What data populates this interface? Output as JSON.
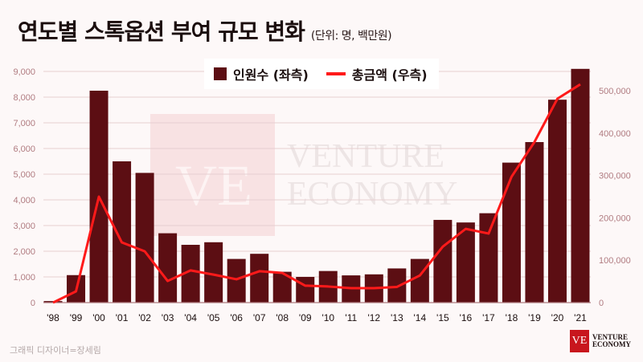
{
  "title": "연도별 스톡옵션 부여 규모 변화",
  "unit": "(단위: 명, 백만원)",
  "credit": "그래픽 디자이너=장세림",
  "watermark": {
    "line1": "VENTURE",
    "line2": "ECONOMY",
    "mark": "VE"
  },
  "logo": {
    "mark": "VE",
    "line1": "VENTURE",
    "line2": "ECONOMY"
  },
  "colors": {
    "bar": "#5c0e13",
    "line": "#ff1a1a",
    "grid": "#e6cfd1",
    "tick": "#b07b80",
    "background": "#fdf8f8"
  },
  "chart_data": {
    "type": "bar+line",
    "title": "연도별 스톡옵션 부여 규모 변화",
    "categories": [
      "'98",
      "'99",
      "'00",
      "'01",
      "'02",
      "'03",
      "'04",
      "'05",
      "'06",
      "'07",
      "'08",
      "'09",
      "'10",
      "'11",
      "'12",
      "'13",
      "'14",
      "'15",
      "'16",
      "'17",
      "'18",
      "'19",
      "'20",
      "'21"
    ],
    "series": [
      {
        "name": "인원수 (좌측)",
        "type": "bar",
        "axis": "left",
        "values": [
          60,
          1070,
          8250,
          5500,
          5050,
          2700,
          2250,
          2350,
          1700,
          1900,
          1200,
          1000,
          1230,
          1060,
          1100,
          1330,
          1700,
          3220,
          3120,
          3480,
          5450,
          6250,
          7900,
          9100
        ]
      },
      {
        "name": "총금액 (우측)",
        "type": "line",
        "axis": "right",
        "values": [
          0,
          26500,
          250000,
          142000,
          121000,
          51000,
          76000,
          66000,
          55000,
          74000,
          70000,
          40000,
          38000,
          34000,
          34000,
          37000,
          64000,
          132000,
          174000,
          163000,
          297000,
          379000,
          481000,
          515000
        ]
      }
    ],
    "left_axis": {
      "ylim": [
        0,
        9000
      ],
      "ticks": [
        "0",
        "1,000",
        "2,000",
        "3,000",
        "4,000",
        "5,000",
        "6,000",
        "7,000",
        "8,000",
        "9,000"
      ]
    },
    "right_axis": {
      "ylim": [
        0,
        500000
      ],
      "ticks": [
        "0",
        "100,000",
        "200,000",
        "300,000",
        "400,000",
        "500,000"
      ]
    },
    "grid": true,
    "legend": "top-center"
  }
}
